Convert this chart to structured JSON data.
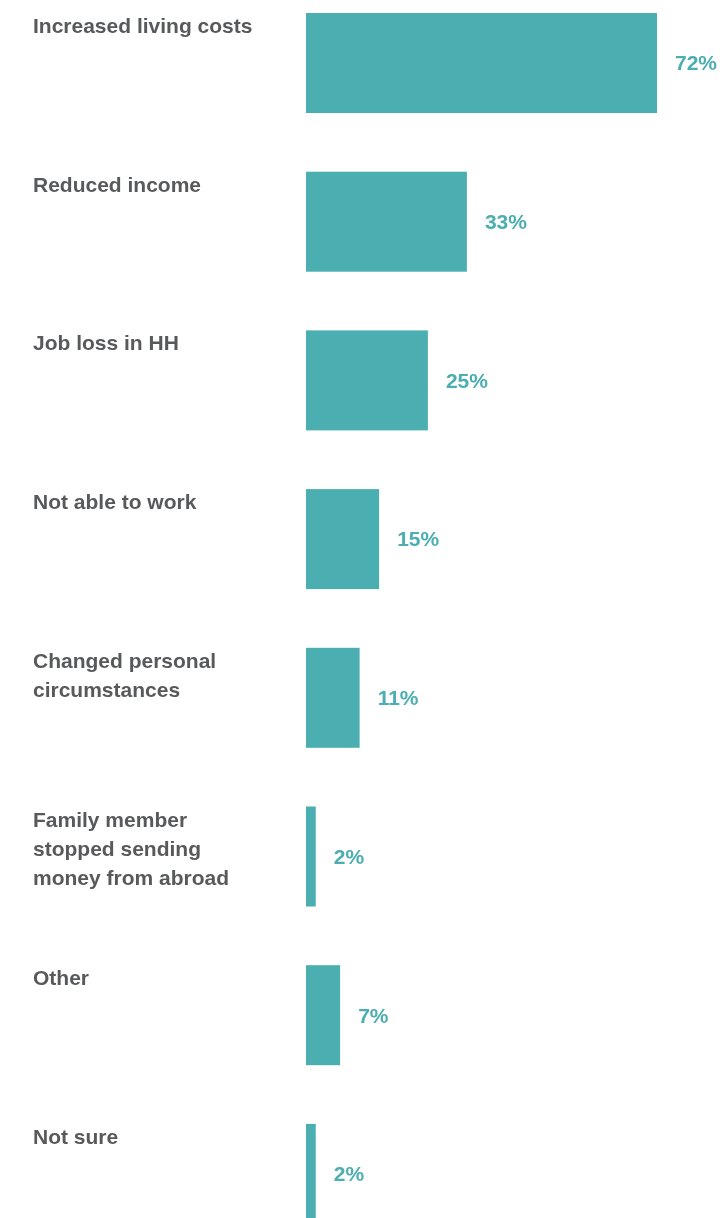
{
  "chart_data": {
    "type": "bar",
    "orientation": "horizontal",
    "categories": [
      "Increased living costs",
      "Reduced income",
      "Job loss in HH",
      "Not able to work",
      "Changed personal\ncircumstances",
      "Family member\nstopped sending\nmoney from abroad",
      "Other",
      "Not sure"
    ],
    "values": [
      72,
      33,
      25,
      15,
      11,
      2,
      7,
      2
    ],
    "value_labels": [
      "72%",
      "33%",
      "25%",
      "15%",
      "11%",
      "2%",
      "7%",
      "2%"
    ],
    "color": "#4baeb1",
    "relative": false
  }
}
